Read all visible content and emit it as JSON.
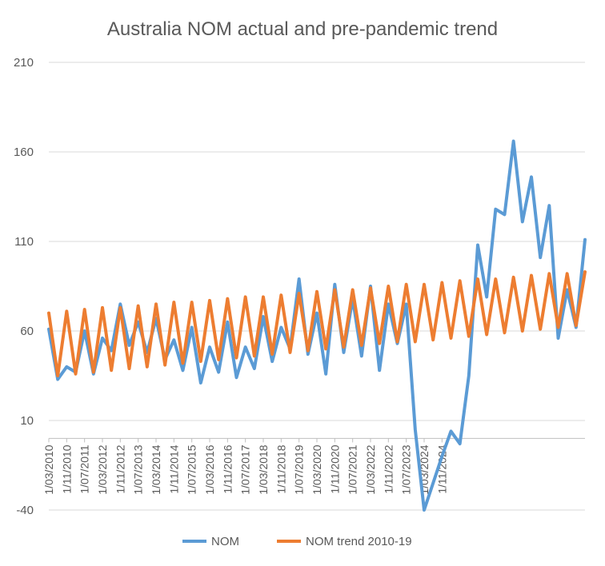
{
  "chart_data": {
    "type": "line",
    "title": "Australia NOM actual and pre-pandemic trend",
    "xlabel": "",
    "ylabel": "",
    "ylim": [
      -40,
      210
    ],
    "yticks": [
      -40,
      10,
      60,
      110,
      160,
      210
    ],
    "xtick_labels": [
      "1/03/2010",
      "1/11/2010",
      "1/07/2011",
      "1/03/2012",
      "1/11/2012",
      "1/07/2013",
      "1/03/2014",
      "1/11/2014",
      "1/07/2015",
      "1/03/2016",
      "1/11/2016",
      "1/07/2017",
      "1/03/2018",
      "1/11/2018",
      "1/07/2019",
      "1/03/2020",
      "1/11/2020",
      "1/07/2021",
      "1/03/2022",
      "1/11/2022",
      "1/07/2023",
      "1/03/2024",
      "1/11/2024"
    ],
    "legend_position": "bottom",
    "series": [
      {
        "name": "NOM",
        "color": "#5B9BD5",
        "values": [
          61,
          33,
          40,
          37,
          60,
          36,
          56,
          49,
          75,
          52,
          65,
          48,
          67,
          44,
          55,
          38,
          62,
          31,
          51,
          37,
          65,
          34,
          51,
          39,
          68,
          43,
          62,
          50,
          89,
          47,
          70,
          36,
          86,
          48,
          78,
          46,
          85,
          38,
          75,
          53,
          75,
          5,
          -40,
          -25,
          -10,
          4,
          -3,
          35,
          108,
          79,
          128,
          125,
          166,
          121,
          146,
          101,
          130,
          56,
          83,
          62,
          111
        ]
      },
      {
        "name": "NOM trend 2010-19",
        "color": "#ED7D31",
        "values": [
          70,
          35,
          71,
          36,
          72,
          37,
          73,
          38,
          73,
          39,
          74,
          40,
          75,
          41,
          76,
          42,
          76,
          43,
          77,
          44,
          78,
          45,
          79,
          46,
          79,
          47,
          80,
          48,
          81,
          49,
          82,
          50,
          83,
          51,
          83,
          52,
          84,
          53,
          85,
          54,
          86,
          54,
          86,
          55,
          87,
          56,
          88,
          57,
          89,
          58,
          89,
          59,
          90,
          60,
          91,
          61,
          92,
          62,
          92,
          63,
          93
        ]
      }
    ]
  }
}
